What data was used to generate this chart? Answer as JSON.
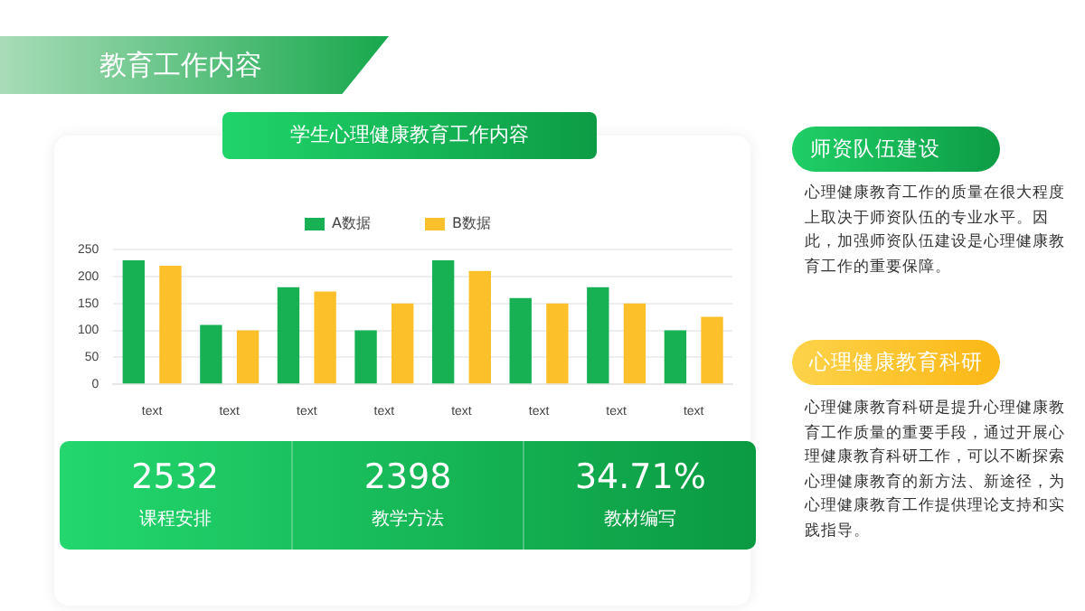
{
  "chart_data": {
    "type": "bar",
    "title": "学生心理健康教育工作内容",
    "categories": [
      "text",
      "text",
      "text",
      "text",
      "text",
      "text",
      "text",
      "text"
    ],
    "series": [
      {
        "name": "A数据",
        "color": "#17b153",
        "values": [
          230,
          110,
          180,
          100,
          230,
          160,
          180,
          100
        ]
      },
      {
        "name": "B数据",
        "color": "#fcc12a",
        "values": [
          220,
          100,
          172,
          150,
          210,
          150,
          150,
          125
        ]
      }
    ],
    "ylim": [
      0,
      250
    ],
    "yticks": [
      0,
      50,
      100,
      150,
      200,
      250
    ],
    "grid": "y",
    "legend": "top",
    "annotations": [
      "教育工作内容",
      "2532",
      "课程安排",
      "2398",
      "教学方法",
      "34.71%",
      "教材编写",
      "师资队伍建设",
      "心理健康教育工作的质量在很大程度上取决于师资队伍的专业水平。因此，加强师资队伍建设是心理健康教育工作的重要保障。",
      "心理健康教育科研",
      "心理健康教育科研是提升心理健康教育工作质量的重要手段，通过开展心理健康教育科研工作，可以不断探索心理健康教育的新方法、新途径，为心理健康教育工作提供理论支持和实践指导。"
    ]
  }
}
